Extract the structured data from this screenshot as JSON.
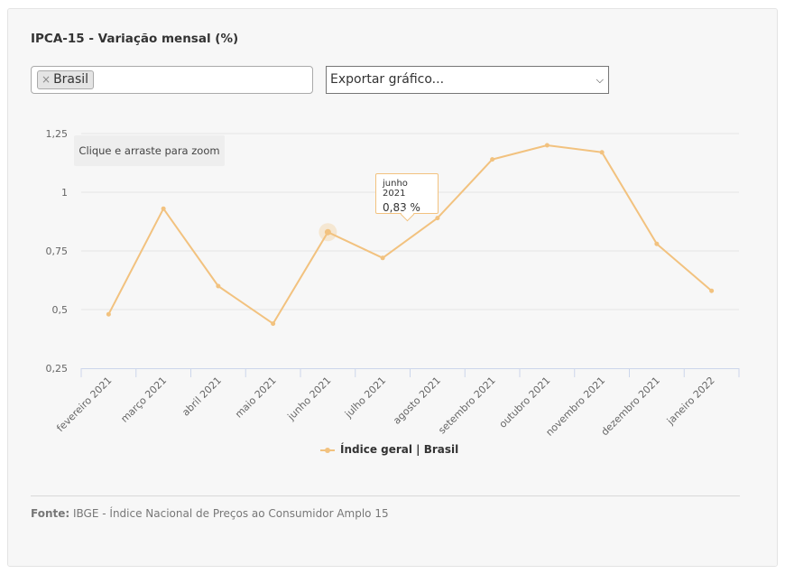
{
  "title": "IPCA-15 - Variação mensal (%)",
  "filter": {
    "tag_label": "Brasil",
    "remove_symbol": "×"
  },
  "export": {
    "label": "Exportar gráfico..."
  },
  "zoom_hint": "Clique e arraste para zoom",
  "legend": {
    "label": "Índice geral | Brasil"
  },
  "source": {
    "prefix": "Fonte:",
    "text": "IBGE - Índice Nacional de Preços ao Consumidor Amplo 15"
  },
  "tooltip": {
    "category": "junho 2021",
    "value": "0,83 %"
  },
  "colors": {
    "series": "#f2c27f",
    "grid": "#e6e6e6",
    "axis": "#ccd6eb"
  },
  "chart_data": {
    "type": "line",
    "title": "IPCA-15 - Variação mensal (%)",
    "xlabel": "",
    "ylabel": "",
    "categories": [
      "fevereiro 2021",
      "março 2021",
      "abril 2021",
      "maio 2021",
      "junho 2021",
      "julho 2021",
      "agosto 2021",
      "setembro 2021",
      "outubro 2021",
      "novembro 2021",
      "dezembro 2021",
      "janeiro 2022"
    ],
    "series": [
      {
        "name": "Índice geral | Brasil",
        "values": [
          0.48,
          0.93,
          0.6,
          0.44,
          0.83,
          0.72,
          0.89,
          1.14,
          1.2,
          1.17,
          0.78,
          0.58
        ]
      }
    ],
    "ylim": [
      0.25,
      1.25
    ],
    "yticks": [
      0.25,
      0.5,
      0.75,
      1,
      1.25
    ],
    "ytick_labels": [
      "0,25",
      "0,5",
      "0,75",
      "1",
      "1,25"
    ],
    "grid": true,
    "legend_position": "bottom-center",
    "highlighted_index": 4
  }
}
